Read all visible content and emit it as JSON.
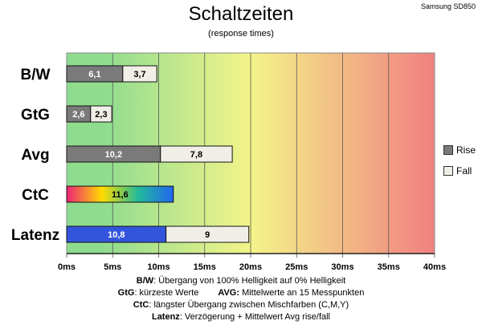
{
  "header": {
    "title": "Schaltzeiten",
    "subtitle": "(response times)",
    "device": "Samsung SD850"
  },
  "legend": [
    {
      "label": "Rise",
      "color": "#7a7a7a"
    },
    {
      "label": "Fall",
      "color": "#f0eee6"
    }
  ],
  "notes": [
    {
      "term": "B/W",
      "text": ":  Übergang von 100% Helligkeit auf 0% Helligkeit"
    },
    {
      "term": "GtG",
      "text": ": kürzeste  Werte",
      "term2": "AVG:",
      "text2": " Mittelwerte  an 15 Messpunkten"
    },
    {
      "term": "CtC",
      "text": ": längster Übergang  zwischen Mischfarben  (C,M,Y)"
    },
    {
      "term": "Latenz",
      "text": ": Verzögerung  + Mittelwert  Avg rise/fall"
    }
  ],
  "chart_data": {
    "type": "bar",
    "orientation": "horizontal",
    "stacked": true,
    "title": "Schaltzeiten",
    "subtitle": "(response times)",
    "categories": [
      "B/W",
      "GtG",
      "Avg",
      "CtC",
      "Latenz"
    ],
    "series": [
      {
        "name": "Rise",
        "values": [
          6.1,
          2.6,
          10.2,
          11.6,
          10.8
        ],
        "labels": [
          "6,1",
          "2,6",
          "10,2",
          "11,6",
          "10,8"
        ]
      },
      {
        "name": "Fall",
        "values": [
          3.7,
          2.3,
          7.8,
          null,
          9
        ],
        "labels": [
          "3,7",
          "2,3",
          "7,8",
          "",
          "9"
        ]
      }
    ],
    "xlim": [
      0,
      40
    ],
    "xticks": [
      "0ms",
      "5ms",
      "10ms",
      "15ms",
      "20ms",
      "25ms",
      "30ms",
      "35ms",
      "40ms"
    ],
    "grid": true,
    "legend_position": "right",
    "colors": {
      "rise": "#7a7a7a",
      "fall": "#f0eee6",
      "latenz": "#3355dd",
      "ctc_gradient": [
        "#ee2277",
        "#ffdd00",
        "#22bb99",
        "#2266ee"
      ],
      "background_gradient": [
        "#8fdc8f",
        "#f4f48a",
        "#f08080"
      ]
    }
  }
}
